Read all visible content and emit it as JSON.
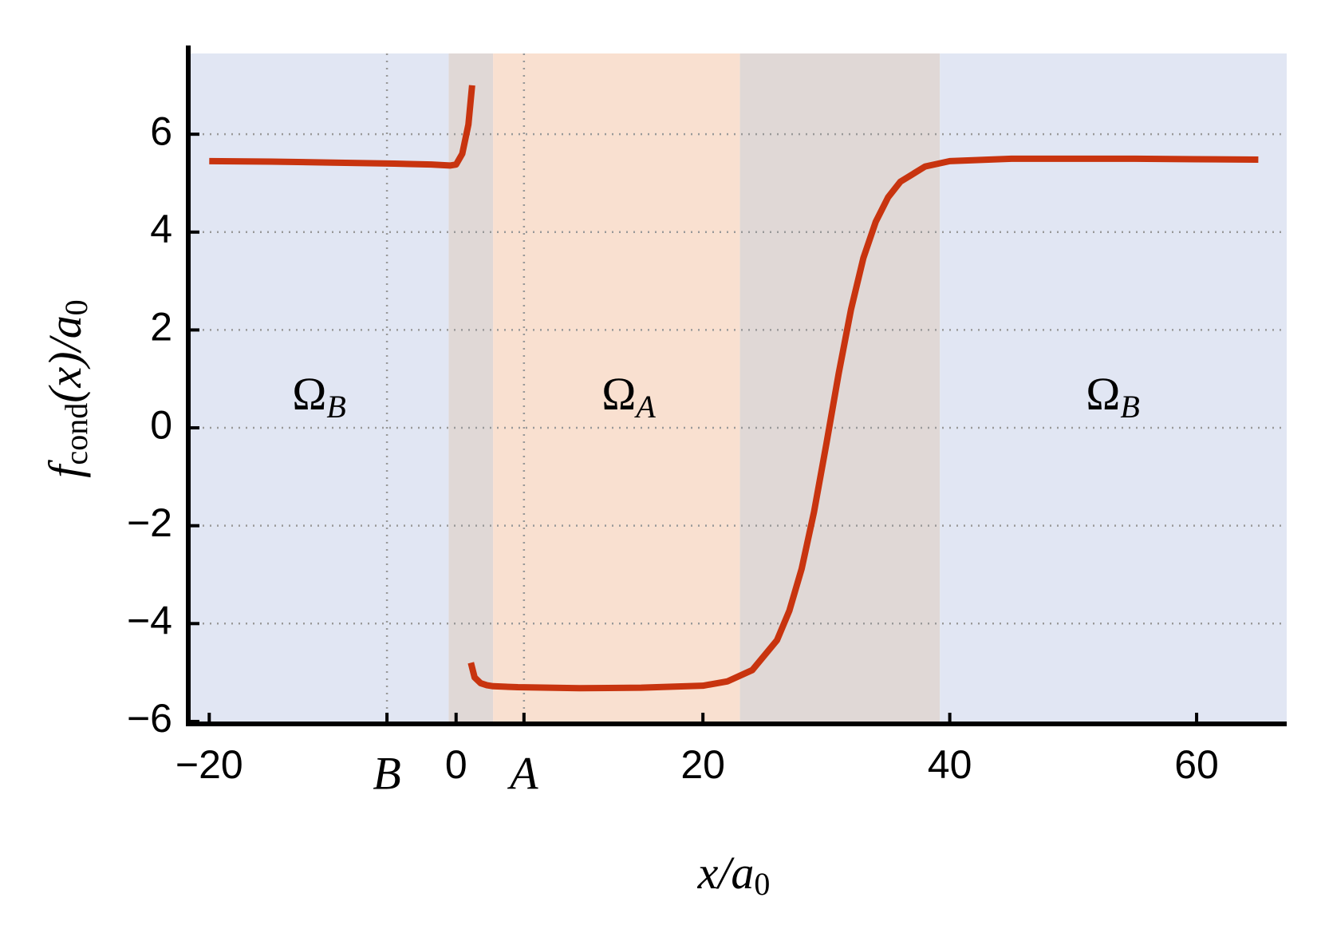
{
  "chart_data": {
    "type": "line",
    "x_label": [
      "x/a",
      "0"
    ],
    "y_label": [
      "f",
      "cond",
      "(x)/a",
      "0"
    ],
    "annotations": [
      {
        "text": "Ω",
        "sub": "B"
      },
      {
        "text": "Ω",
        "sub": "A"
      },
      {
        "text": "Ω",
        "sub": "B"
      }
    ],
    "regions": [
      {
        "from": -21.7,
        "to": -0.6,
        "color": "#e1e6f3"
      },
      {
        "from": -0.6,
        "to": 3.0,
        "color": "#e0d8d6"
      },
      {
        "from": 3.0,
        "to": 23.0,
        "color": "#f9e0d0"
      },
      {
        "from": 23.0,
        "to": 39.2,
        "color": "#e0d8d6"
      },
      {
        "from": 39.2,
        "to": 67.3,
        "color": "#e1e6f3"
      }
    ],
    "x": [
      -20,
      -15,
      -10,
      -5,
      -2,
      -0.5,
      0,
      0.5,
      1,
      1.3,
      null,
      1.2,
      1.5,
      2,
      2.5,
      3,
      5,
      10,
      15,
      20,
      22,
      24,
      26,
      27,
      28,
      29,
      30,
      31,
      32,
      33,
      34,
      35,
      36,
      38,
      40,
      45,
      50,
      55,
      60,
      65
    ],
    "series": [
      {
        "color": "#c8340f",
        "values": [
          5.45,
          5.44,
          5.42,
          5.4,
          5.38,
          5.36,
          5.38,
          5.6,
          6.2,
          7.0,
          null,
          -4.8,
          -5.1,
          -5.22,
          -5.26,
          -5.28,
          -5.3,
          -5.32,
          -5.31,
          -5.27,
          -5.18,
          -4.95,
          -4.34,
          -3.74,
          -2.88,
          -1.72,
          -0.33,
          1.11,
          2.42,
          3.47,
          4.21,
          4.71,
          5.03,
          5.34,
          5.45,
          5.5,
          5.5,
          5.5,
          5.49,
          5.48
        ]
      }
    ],
    "xlim": [
      -21.7,
      67.3
    ],
    "ylim": [
      -6.05,
      7.65
    ],
    "xticks": [
      {
        "value": -20,
        "label": "−20"
      },
      {
        "value": -5.6,
        "label": "B",
        "grid": true
      },
      0,
      {
        "value": 5.5,
        "label": "A",
        "grid": true
      },
      20,
      40,
      60
    ],
    "yticks": [
      {
        "value": -6,
        "label": "−6"
      },
      {
        "value": -4,
        "label": "−4"
      },
      {
        "value": -2,
        "label": "−2"
      },
      0,
      2,
      4,
      6
    ],
    "grid": true
  }
}
